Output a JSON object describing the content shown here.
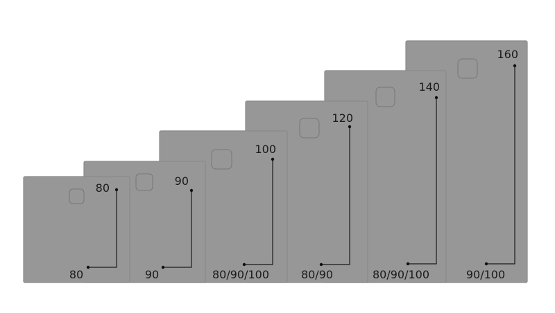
{
  "trays": [
    {
      "length_label": "80",
      "width_label": "80"
    },
    {
      "length_label": "90",
      "width_label": "90"
    },
    {
      "length_label": "100",
      "width_label": "80/90/100"
    },
    {
      "length_label": "120",
      "width_label": "80/90"
    },
    {
      "length_label": "140",
      "width_label": "80/90/100"
    },
    {
      "length_label": "160",
      "width_label": "90/100"
    }
  ],
  "colors": {
    "tray": "#989798",
    "line": "#1a1a1a",
    "background": "#ffffff"
  }
}
